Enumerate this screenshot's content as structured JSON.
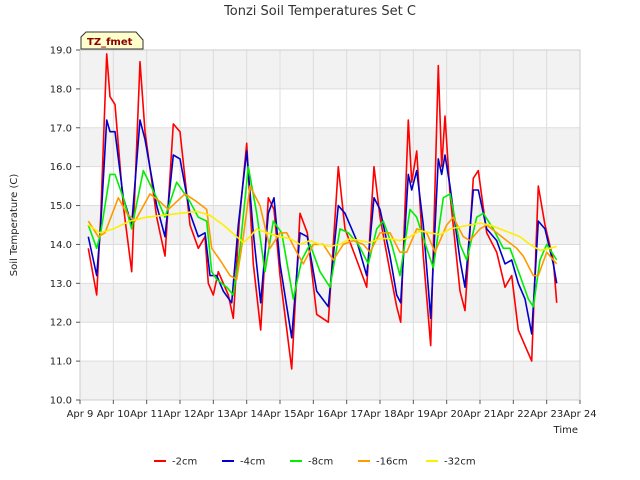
{
  "chart_data": {
    "type": "line",
    "title": "Tonzi Soil Temperatures Set C",
    "xlabel": "Time",
    "ylabel": "Soil Temperature (C)",
    "badge": "TZ_fmet",
    "xlim": [
      9,
      24
    ],
    "ylim": [
      10.0,
      19.0
    ],
    "x_ticks": [
      {
        "v": 9,
        "label": "Apr 9"
      },
      {
        "v": 10,
        "label": "Apr 10"
      },
      {
        "v": 11,
        "label": "Apr 11"
      },
      {
        "v": 12,
        "label": "Apr 12"
      },
      {
        "v": 13,
        "label": "Apr 13"
      },
      {
        "v": 14,
        "label": "Apr 14"
      },
      {
        "v": 15,
        "label": "Apr 15"
      },
      {
        "v": 16,
        "label": "Apr 16"
      },
      {
        "v": 17,
        "label": "Apr 17"
      },
      {
        "v": 18,
        "label": "Apr 18"
      },
      {
        "v": 19,
        "label": "Apr 19"
      },
      {
        "v": 20,
        "label": "Apr 20"
      },
      {
        "v": 21,
        "label": "Apr 21"
      },
      {
        "v": 22,
        "label": "Apr 22"
      },
      {
        "v": 23,
        "label": "Apr 23"
      },
      {
        "v": 24,
        "label": "Apr 24"
      }
    ],
    "y_ticks": [
      {
        "v": 10,
        "label": "10.0"
      },
      {
        "v": 11,
        "label": "11.0"
      },
      {
        "v": 12,
        "label": "12.0"
      },
      {
        "v": 13,
        "label": "13.0"
      },
      {
        "v": 14,
        "label": "14.0"
      },
      {
        "v": 15,
        "label": "15.0"
      },
      {
        "v": 16,
        "label": "16.0"
      },
      {
        "v": 17,
        "label": "17.0"
      },
      {
        "v": 18,
        "label": "18.0"
      },
      {
        "v": 19,
        "label": "19.0"
      }
    ],
    "grid": true,
    "legend_position": "bottom",
    "series": [
      {
        "name": "-2cm",
        "color": "#ff0000",
        "points": [
          [
            9.25,
            13.9
          ],
          [
            9.5,
            12.7
          ],
          [
            9.62,
            14.7
          ],
          [
            9.8,
            18.9
          ],
          [
            9.9,
            17.8
          ],
          [
            10.05,
            17.6
          ],
          [
            10.3,
            15.0
          ],
          [
            10.55,
            13.3
          ],
          [
            10.8,
            18.7
          ],
          [
            10.95,
            16.9
          ],
          [
            11.3,
            14.7
          ],
          [
            11.55,
            13.7
          ],
          [
            11.8,
            17.1
          ],
          [
            12.0,
            16.9
          ],
          [
            12.3,
            14.5
          ],
          [
            12.55,
            13.9
          ],
          [
            12.75,
            14.2
          ],
          [
            12.85,
            13.0
          ],
          [
            13.0,
            12.7
          ],
          [
            13.15,
            13.3
          ],
          [
            13.45,
            12.7
          ],
          [
            13.6,
            12.1
          ],
          [
            13.78,
            14.6
          ],
          [
            14.0,
            16.6
          ],
          [
            14.2,
            13.5
          ],
          [
            14.42,
            11.8
          ],
          [
            14.65,
            15.2
          ],
          [
            14.82,
            14.9
          ],
          [
            15.0,
            13.2
          ],
          [
            15.35,
            10.8
          ],
          [
            15.6,
            14.8
          ],
          [
            15.82,
            14.3
          ],
          [
            16.1,
            12.2
          ],
          [
            16.45,
            12.0
          ],
          [
            16.75,
            16.0
          ],
          [
            16.95,
            14.4
          ],
          [
            17.3,
            13.6
          ],
          [
            17.6,
            12.9
          ],
          [
            17.82,
            16.0
          ],
          [
            18.0,
            14.7
          ],
          [
            18.3,
            13.3
          ],
          [
            18.5,
            12.4
          ],
          [
            18.62,
            12.0
          ],
          [
            18.85,
            17.2
          ],
          [
            18.95,
            15.6
          ],
          [
            19.1,
            16.4
          ],
          [
            19.3,
            13.7
          ],
          [
            19.52,
            11.4
          ],
          [
            19.75,
            18.6
          ],
          [
            19.85,
            16.0
          ],
          [
            19.95,
            17.3
          ],
          [
            20.1,
            15.3
          ],
          [
            20.4,
            12.8
          ],
          [
            20.55,
            12.3
          ],
          [
            20.8,
            15.7
          ],
          [
            20.95,
            15.9
          ],
          [
            21.2,
            14.3
          ],
          [
            21.5,
            13.8
          ],
          [
            21.75,
            12.9
          ],
          [
            21.95,
            13.2
          ],
          [
            22.15,
            11.8
          ],
          [
            22.35,
            11.4
          ],
          [
            22.55,
            11.0
          ],
          [
            22.75,
            15.5
          ],
          [
            22.95,
            14.5
          ],
          [
            23.2,
            13.6
          ],
          [
            23.3,
            12.5
          ]
        ]
      },
      {
        "name": "-4cm",
        "color": "#0000cc",
        "points": [
          [
            9.25,
            14.2
          ],
          [
            9.5,
            13.2
          ],
          [
            9.62,
            14.5
          ],
          [
            9.8,
            17.2
          ],
          [
            9.9,
            16.9
          ],
          [
            10.05,
            16.9
          ],
          [
            10.3,
            15.2
          ],
          [
            10.55,
            14.5
          ],
          [
            10.8,
            17.2
          ],
          [
            10.95,
            16.7
          ],
          [
            11.3,
            15.0
          ],
          [
            11.55,
            14.2
          ],
          [
            11.8,
            16.3
          ],
          [
            12.0,
            16.2
          ],
          [
            12.3,
            14.8
          ],
          [
            12.55,
            14.2
          ],
          [
            12.75,
            14.3
          ],
          [
            12.9,
            13.2
          ],
          [
            13.1,
            13.2
          ],
          [
            13.3,
            12.8
          ],
          [
            13.55,
            12.5
          ],
          [
            13.75,
            14.5
          ],
          [
            14.0,
            16.4
          ],
          [
            14.2,
            14.3
          ],
          [
            14.42,
            12.5
          ],
          [
            14.65,
            14.8
          ],
          [
            14.82,
            15.2
          ],
          [
            15.0,
            13.5
          ],
          [
            15.35,
            11.6
          ],
          [
            15.6,
            14.3
          ],
          [
            15.82,
            14.2
          ],
          [
            16.1,
            12.8
          ],
          [
            16.45,
            12.4
          ],
          [
            16.75,
            15.0
          ],
          [
            16.95,
            14.8
          ],
          [
            17.3,
            14.1
          ],
          [
            17.6,
            13.2
          ],
          [
            17.82,
            15.2
          ],
          [
            18.0,
            14.9
          ],
          [
            18.3,
            13.7
          ],
          [
            18.5,
            12.7
          ],
          [
            18.62,
            12.5
          ],
          [
            18.85,
            15.8
          ],
          [
            18.95,
            15.4
          ],
          [
            19.1,
            15.9
          ],
          [
            19.3,
            14.5
          ],
          [
            19.52,
            12.1
          ],
          [
            19.75,
            16.2
          ],
          [
            19.85,
            15.8
          ],
          [
            19.95,
            16.3
          ],
          [
            20.1,
            15.5
          ],
          [
            20.4,
            13.6
          ],
          [
            20.55,
            12.9
          ],
          [
            20.8,
            15.4
          ],
          [
            20.95,
            15.4
          ],
          [
            21.2,
            14.4
          ],
          [
            21.5,
            14.1
          ],
          [
            21.75,
            13.5
          ],
          [
            21.95,
            13.6
          ],
          [
            22.15,
            13.0
          ],
          [
            22.35,
            12.6
          ],
          [
            22.55,
            11.7
          ],
          [
            22.75,
            14.6
          ],
          [
            22.95,
            14.4
          ],
          [
            23.2,
            13.5
          ],
          [
            23.3,
            13.0
          ]
        ]
      },
      {
        "name": "-8cm",
        "color": "#00ee00",
        "points": [
          [
            9.25,
            14.5
          ],
          [
            9.5,
            13.9
          ],
          [
            9.62,
            14.3
          ],
          [
            9.9,
            15.8
          ],
          [
            10.05,
            15.8
          ],
          [
            10.3,
            15.2
          ],
          [
            10.55,
            14.4
          ],
          [
            10.9,
            15.9
          ],
          [
            11.3,
            15.2
          ],
          [
            11.55,
            14.7
          ],
          [
            11.9,
            15.6
          ],
          [
            12.3,
            15.1
          ],
          [
            12.55,
            14.7
          ],
          [
            12.8,
            14.6
          ],
          [
            12.95,
            13.3
          ],
          [
            13.1,
            13.1
          ],
          [
            13.4,
            12.9
          ],
          [
            13.6,
            12.7
          ],
          [
            13.8,
            13.9
          ],
          [
            14.05,
            16.0
          ],
          [
            14.3,
            14.8
          ],
          [
            14.55,
            13.3
          ],
          [
            14.8,
            14.6
          ],
          [
            15.05,
            14.3
          ],
          [
            15.4,
            12.6
          ],
          [
            15.65,
            13.6
          ],
          [
            15.9,
            14.0
          ],
          [
            16.2,
            13.3
          ],
          [
            16.5,
            12.9
          ],
          [
            16.8,
            14.4
          ],
          [
            17.05,
            14.3
          ],
          [
            17.35,
            14.0
          ],
          [
            17.65,
            13.5
          ],
          [
            17.9,
            14.4
          ],
          [
            18.1,
            14.6
          ],
          [
            18.35,
            14.0
          ],
          [
            18.6,
            13.2
          ],
          [
            18.9,
            14.9
          ],
          [
            19.1,
            14.7
          ],
          [
            19.4,
            13.9
          ],
          [
            19.6,
            13.4
          ],
          [
            19.9,
            15.2
          ],
          [
            20.1,
            15.3
          ],
          [
            20.4,
            14.0
          ],
          [
            20.6,
            13.6
          ],
          [
            20.9,
            14.7
          ],
          [
            21.1,
            14.8
          ],
          [
            21.4,
            14.4
          ],
          [
            21.7,
            13.9
          ],
          [
            21.9,
            13.9
          ],
          [
            22.2,
            13.2
          ],
          [
            22.45,
            12.6
          ],
          [
            22.6,
            12.4
          ],
          [
            22.8,
            13.6
          ],
          [
            23.0,
            14.0
          ],
          [
            23.3,
            13.6
          ]
        ]
      },
      {
        "name": "-16cm",
        "color": "#ff9900",
        "points": [
          [
            9.25,
            14.6
          ],
          [
            9.55,
            14.2
          ],
          [
            9.75,
            14.3
          ],
          [
            10.15,
            15.2
          ],
          [
            10.4,
            14.8
          ],
          [
            10.65,
            14.6
          ],
          [
            11.1,
            15.3
          ],
          [
            11.4,
            15.1
          ],
          [
            11.65,
            14.9
          ],
          [
            12.15,
            15.3
          ],
          [
            12.5,
            15.1
          ],
          [
            12.8,
            14.9
          ],
          [
            12.95,
            13.9
          ],
          [
            13.2,
            13.6
          ],
          [
            13.5,
            13.2
          ],
          [
            13.7,
            13.1
          ],
          [
            13.9,
            14.2
          ],
          [
            14.1,
            15.5
          ],
          [
            14.4,
            15.0
          ],
          [
            14.7,
            13.9
          ],
          [
            15.0,
            14.3
          ],
          [
            15.2,
            14.3
          ],
          [
            15.5,
            13.8
          ],
          [
            15.7,
            13.5
          ],
          [
            16.0,
            14.0
          ],
          [
            16.3,
            14.0
          ],
          [
            16.6,
            13.6
          ],
          [
            16.9,
            14.0
          ],
          [
            17.2,
            14.1
          ],
          [
            17.5,
            14.0
          ],
          [
            17.7,
            13.8
          ],
          [
            18.0,
            14.3
          ],
          [
            18.3,
            14.3
          ],
          [
            18.6,
            13.8
          ],
          [
            18.8,
            13.8
          ],
          [
            19.1,
            14.4
          ],
          [
            19.4,
            14.3
          ],
          [
            19.65,
            13.8
          ],
          [
            20.0,
            14.5
          ],
          [
            20.2,
            14.7
          ],
          [
            20.5,
            14.2
          ],
          [
            20.7,
            14.1
          ],
          [
            21.0,
            14.4
          ],
          [
            21.2,
            14.5
          ],
          [
            21.5,
            14.3
          ],
          [
            21.8,
            14.1
          ],
          [
            22.1,
            13.9
          ],
          [
            22.3,
            13.7
          ],
          [
            22.6,
            13.2
          ],
          [
            22.75,
            13.2
          ],
          [
            23.0,
            13.8
          ],
          [
            23.3,
            13.5
          ]
        ]
      },
      {
        "name": "-32cm",
        "color": "#ffee00",
        "points": [
          [
            9.25,
            14.5
          ],
          [
            9.6,
            14.3
          ],
          [
            10.0,
            14.4
          ],
          [
            10.5,
            14.6
          ],
          [
            11.0,
            14.7
          ],
          [
            11.5,
            14.75
          ],
          [
            12.0,
            14.8
          ],
          [
            12.5,
            14.85
          ],
          [
            12.9,
            14.75
          ],
          [
            13.3,
            14.5
          ],
          [
            13.7,
            14.2
          ],
          [
            13.9,
            14.05
          ],
          [
            14.1,
            14.2
          ],
          [
            14.3,
            14.4
          ],
          [
            14.6,
            14.3
          ],
          [
            15.0,
            14.2
          ],
          [
            15.3,
            14.15
          ],
          [
            15.6,
            14.0
          ],
          [
            15.9,
            14.1
          ],
          [
            16.2,
            14.0
          ],
          [
            16.5,
            13.95
          ],
          [
            16.8,
            14.0
          ],
          [
            17.1,
            14.15
          ],
          [
            17.4,
            14.1
          ],
          [
            17.7,
            14.05
          ],
          [
            18.0,
            14.15
          ],
          [
            18.3,
            14.15
          ],
          [
            18.6,
            14.1
          ],
          [
            18.9,
            14.2
          ],
          [
            19.2,
            14.35
          ],
          [
            19.5,
            14.3
          ],
          [
            19.8,
            14.25
          ],
          [
            20.1,
            14.4
          ],
          [
            20.4,
            14.45
          ],
          [
            20.7,
            14.5
          ],
          [
            21.0,
            14.55
          ],
          [
            21.3,
            14.5
          ],
          [
            21.6,
            14.4
          ],
          [
            21.9,
            14.3
          ],
          [
            22.2,
            14.2
          ],
          [
            22.5,
            14.0
          ],
          [
            22.8,
            13.85
          ],
          [
            23.1,
            13.9
          ],
          [
            23.3,
            13.95
          ]
        ]
      }
    ]
  }
}
